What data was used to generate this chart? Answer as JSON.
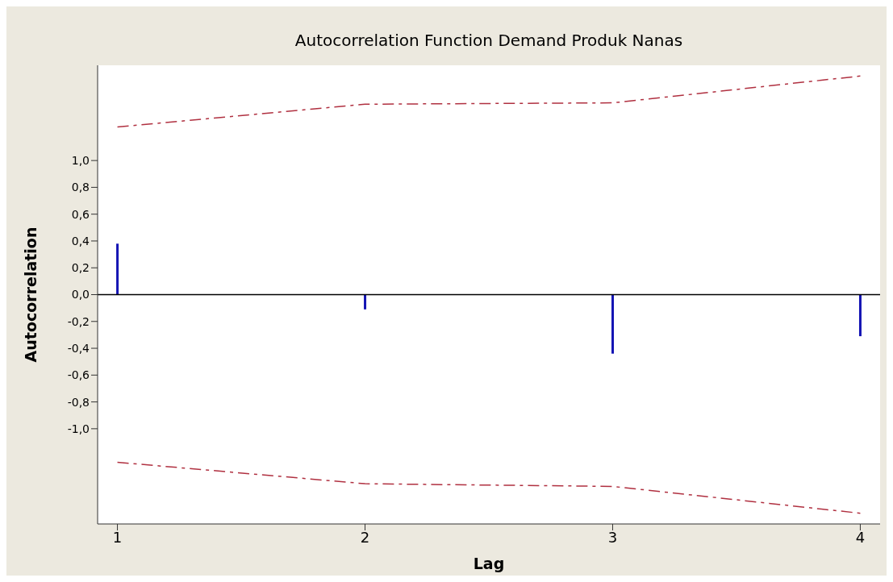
{
  "chart_data": {
    "type": "bar",
    "title": "Autocorrelation Function Demand Produk Nanas",
    "xlabel": "Lag",
    "ylabel": "Autocorrelation",
    "x": [
      1,
      2,
      3,
      4
    ],
    "series": [
      {
        "color": "#1414b4",
        "values": [
          0.38,
          -0.11,
          -0.44,
          -0.31
        ]
      },
      {
        "type": "line",
        "color": "#b03040",
        "line_style": "dashed",
        "values": [
          1.25,
          1.42,
          1.43,
          1.63
        ]
      },
      {
        "type": "line",
        "color": "#b03040",
        "line_style": "dashed",
        "values": [
          -1.25,
          -1.41,
          -1.43,
          -1.63
        ]
      }
    ],
    "xlim": [
      0.92,
      4.08
    ],
    "xticks": [
      1,
      2,
      3,
      4
    ],
    "ylim": [
      -1.71,
      1.71
    ],
    "yticks": [
      {
        "value": -1,
        "label": "-1,0"
      },
      {
        "value": -0.8,
        "label": "-0,8"
      },
      {
        "value": -0.6,
        "label": "-0,6"
      },
      {
        "value": -0.4,
        "label": "-0,4"
      },
      {
        "value": -0.2,
        "label": "-0,2"
      },
      {
        "value": 0,
        "label": "0,0"
      },
      {
        "value": 0.2,
        "label": "0,2"
      },
      {
        "value": 0.4,
        "label": "0,4"
      },
      {
        "value": 0.6,
        "label": "0,6"
      },
      {
        "value": 0.8,
        "label": "0,8"
      },
      {
        "value": 1,
        "label": "1,0"
      }
    ],
    "ref_lines": [
      {
        "axis": "y",
        "value": 0,
        "color": "#000000"
      }
    ],
    "grid": false,
    "marker": "none"
  }
}
